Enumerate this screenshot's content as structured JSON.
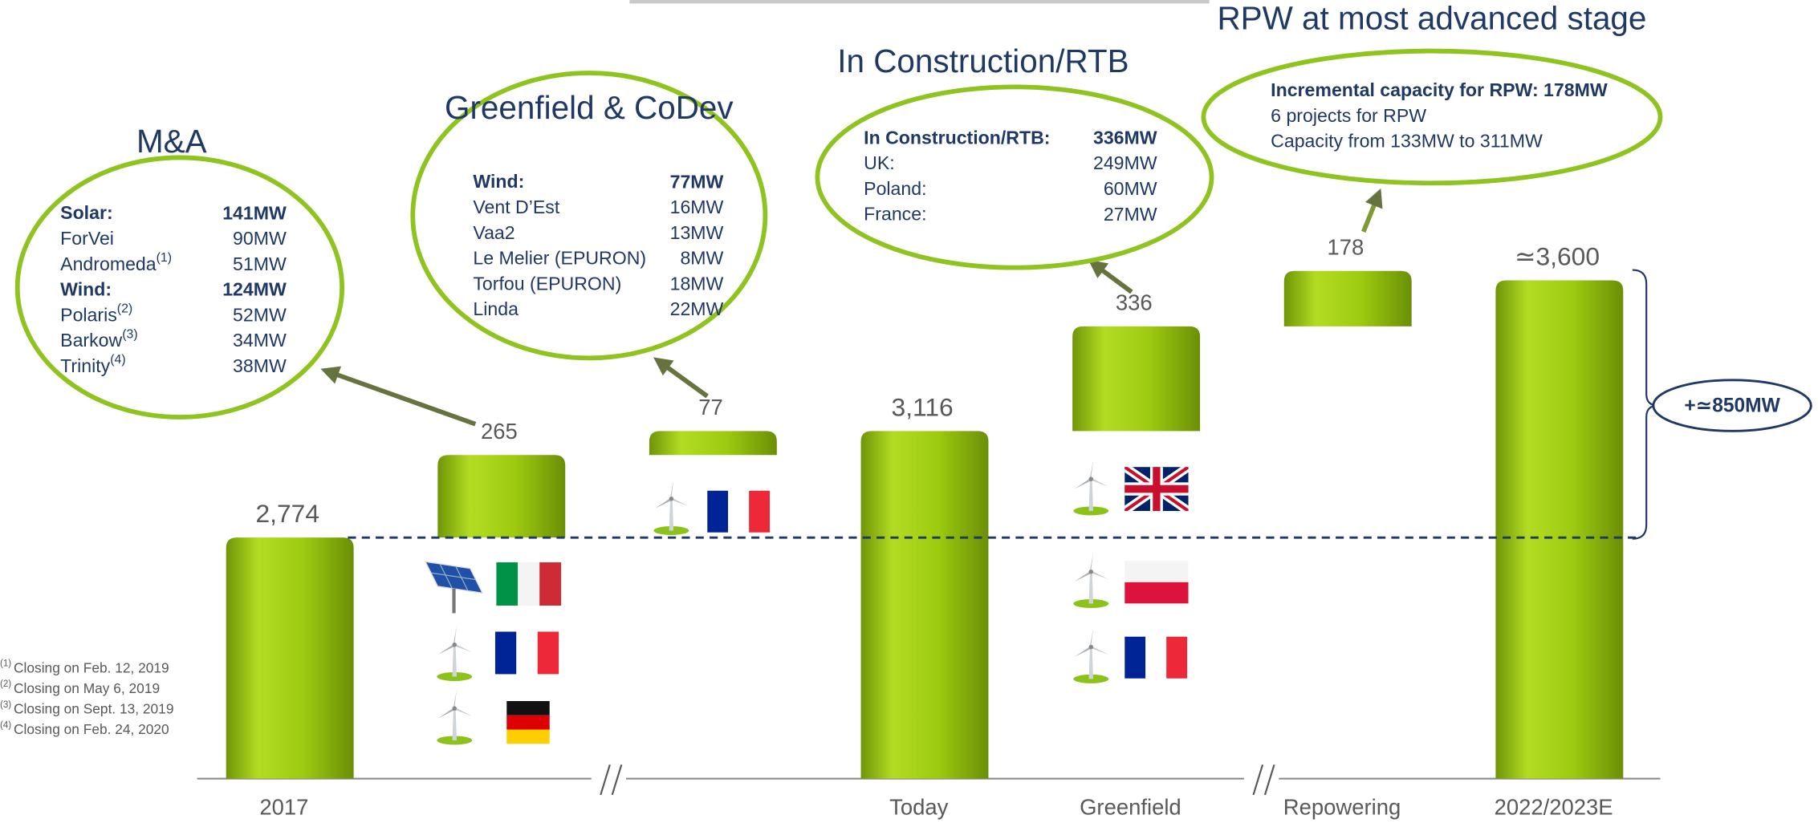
{
  "chart_data": {
    "type": "waterfall",
    "categories": [
      "2017",
      null,
      null,
      "Today",
      "Greenfield",
      "Repowering",
      "2022/2023E"
    ],
    "measure": [
      "total",
      "relative",
      "relative",
      "total",
      "relative",
      "relative",
      "total"
    ],
    "values": [
      2774,
      265,
      77,
      3116,
      336,
      178,
      3600
    ],
    "value_labels": [
      "2,774",
      "265",
      "77",
      "3,116",
      "336",
      "178",
      "≃3,600"
    ],
    "ylim": [
      2000,
      4500
    ],
    "color": "#9dcb10"
  },
  "annotations": {
    "bubbles": [
      {
        "title": "M&A",
        "lines": [
          {
            "label": "Solar:",
            "value": "141MW",
            "bold": true
          },
          {
            "label": "ForVei",
            "value": "90MW"
          },
          {
            "label": "Andromeda",
            "sup": "(1)",
            "value": "51MW"
          },
          {
            "label": "Wind:",
            "value": "124MW",
            "bold": true
          },
          {
            "label": "Polaris",
            "sup": "(2)",
            "value": "52MW"
          },
          {
            "label": "Barkow",
            "sup": "(3)",
            "value": "34MW"
          },
          {
            "label": "Trinity",
            "sup": "(4)",
            "value": "38MW"
          }
        ]
      },
      {
        "title": "Greenfield & CoDev",
        "lines": [
          {
            "label": "Wind:",
            "value": "77MW",
            "bold": true
          },
          {
            "label": "Vent D’Est",
            "value": "16MW"
          },
          {
            "label": "Vaa2",
            "value": "13MW"
          },
          {
            "label": "Le Melier (EPURON)",
            "value": "8MW"
          },
          {
            "label": "Torfou (EPURON)",
            "value": "18MW"
          },
          {
            "label": "Linda",
            "value": "22MW"
          }
        ]
      },
      {
        "title": "In Construction/RTB",
        "lines": [
          {
            "label": "In Construction/RTB:",
            "value": "336MW",
            "bold": true
          },
          {
            "label": "UK:",
            "value": "249MW"
          },
          {
            "label": "Poland:",
            "value": "60MW"
          },
          {
            "label": "France:",
            "value": "27MW"
          }
        ]
      },
      {
        "title": "RPW at most advanced stage",
        "lines": [
          {
            "label": "Incremental capacity for RPW: 178MW",
            "bold": true
          },
          {
            "label": "6 projects for RPW"
          },
          {
            "label": "Capacity from 133MW to 311MW"
          }
        ]
      }
    ],
    "total_change": "+≃850MW",
    "footnotes": [
      {
        "mark": "(1)",
        "text": "Closing on Feb. 12, 2019"
      },
      {
        "mark": "(2)",
        "text": "Closing  on May 6, 2019"
      },
      {
        "mark": "(3)",
        "text": "Closing on Sept. 13, 2019"
      },
      {
        "mark": "(4)",
        "text": "Closing on Feb. 24, 2020"
      }
    ]
  }
}
